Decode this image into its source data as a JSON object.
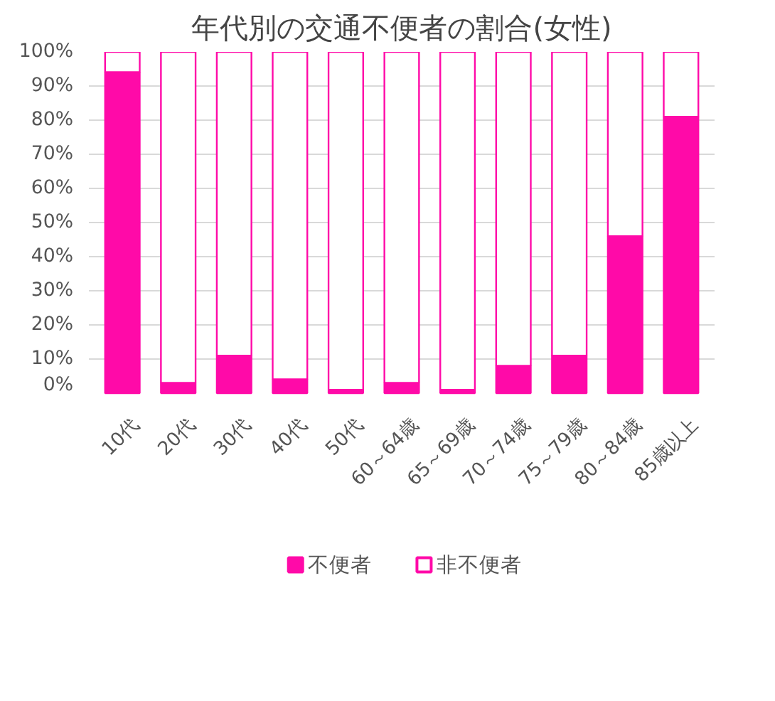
{
  "chart_data": {
    "type": "bar",
    "title": "年代別の交通不便者の割合(女性)",
    "stacked": true,
    "categories": [
      "10代",
      "20代",
      "30代",
      "40代",
      "50代",
      "60～64歳",
      "65～69歳",
      "70～74歳",
      "75～79歳",
      "80～84歳",
      "85歳以上"
    ],
    "series": [
      {
        "name": "不便者",
        "color": "#ff0aa8",
        "values": [
          94,
          3,
          11,
          4,
          1,
          3,
          1,
          8,
          11,
          46,
          81
        ]
      },
      {
        "name": "非不便者",
        "color": "#ffffff",
        "values": [
          6,
          97,
          89,
          96,
          99,
          97,
          99,
          92,
          89,
          54,
          19
        ]
      }
    ],
    "ylim": [
      0,
      100
    ],
    "yticks": [
      {
        "value": 0,
        "label": "0%"
      },
      {
        "value": 10,
        "label": "10%"
      },
      {
        "value": 20,
        "label": "20%"
      },
      {
        "value": 30,
        "label": "30%"
      },
      {
        "value": 40,
        "label": "40%"
      },
      {
        "value": 50,
        "label": "50%"
      },
      {
        "value": 60,
        "label": "60%"
      },
      {
        "value": 70,
        "label": "70%"
      },
      {
        "value": 80,
        "label": "80%"
      },
      {
        "value": 90,
        "label": "90%"
      },
      {
        "value": 100,
        "label": "100%"
      }
    ],
    "grid": "y",
    "legend": "bottom"
  }
}
